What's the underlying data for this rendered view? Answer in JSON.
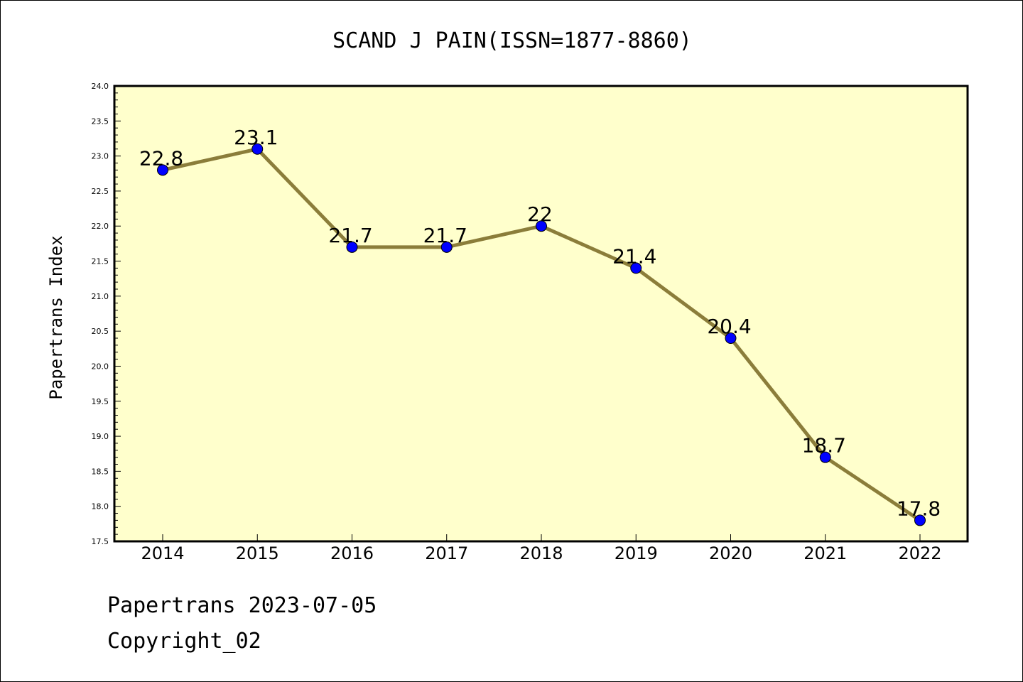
{
  "chart_data": {
    "type": "line",
    "title": "SCAND J PAIN(ISSN=1877-8860)",
    "xlabel": "",
    "ylabel": "Papertrans Index",
    "categories": [
      "2014",
      "2015",
      "2016",
      "2017",
      "2018",
      "2019",
      "2020",
      "2021",
      "2022"
    ],
    "series": [
      {
        "values": [
          22.8,
          23.1,
          21.7,
          21.7,
          22.0,
          21.4,
          20.4,
          18.7,
          17.8
        ],
        "labels": [
          "22.8",
          "23.1",
          "21.7",
          "21.7",
          "22",
          "21.4",
          "20.4",
          "18.7",
          "17.8"
        ]
      }
    ],
    "ylim": [
      17.5,
      24.0
    ],
    "yticks": [
      "17.5",
      "18.0",
      "18.5",
      "19.0",
      "19.5",
      "20.0",
      "20.5",
      "21.0",
      "21.5",
      "22.0",
      "22.5",
      "23.0",
      "23.5",
      "24.0"
    ],
    "grid": false,
    "colors": {
      "plot_background": "#FFFFCC",
      "line": "#8B7D3A",
      "marker": "#0000FF"
    }
  },
  "footer": {
    "date_text": "Papertrans 2023-07-05",
    "copyright_text": "Copyright_02"
  }
}
